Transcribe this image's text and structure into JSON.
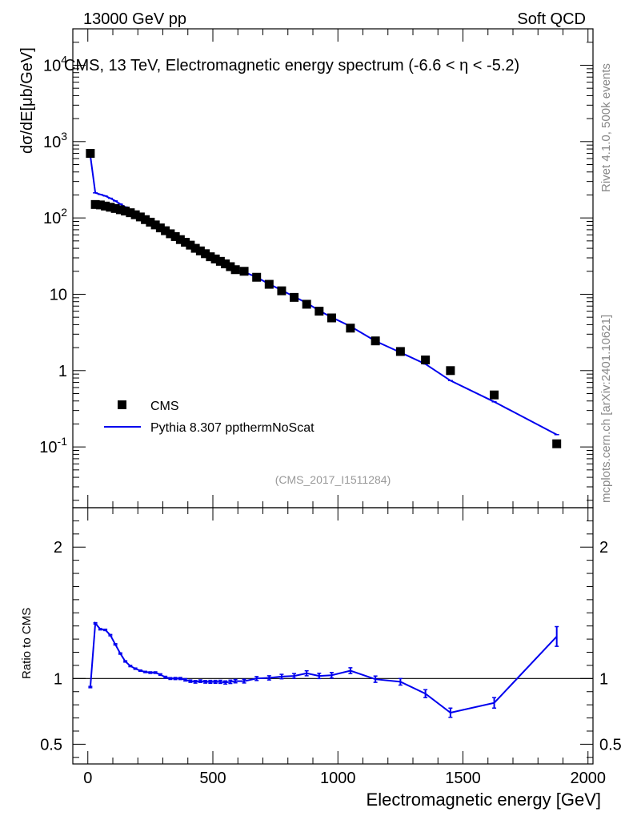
{
  "header": {
    "left": "13000 GeV pp",
    "right": "Soft QCD"
  },
  "side": {
    "rivet": "Rivet 4.1.0,  500k events",
    "mcplots": "mcplots.cern.ch [arXiv:2401.10621]"
  },
  "colors": {
    "mc": "#0000ee",
    "data": "#000000"
  },
  "chart_data": [
    {
      "type": "scatter",
      "title": "CMS, 13 TeV, Electromagnetic energy spectrum (-6.6 < η < -5.2)",
      "ylabel": "dσ/dE[μb/GeV]",
      "xlabel": "",
      "watermark": "(CMS_2017_I1511284)",
      "yscale": "log",
      "xlim": [
        -60,
        2020
      ],
      "ylim": [
        0.016,
        30000
      ],
      "y_ticks": [
        0.1,
        1,
        10,
        100,
        1000,
        10000
      ],
      "y_tick_labels": [
        "10^-1",
        "1",
        "10",
        "10^2",
        "10^3",
        "10^4"
      ],
      "legend_position": "lower-left",
      "series": [
        {
          "name": "CMS",
          "style": "markers",
          "x": [
            10,
            30,
            50,
            70,
            90,
            110,
            130,
            150,
            170,
            190,
            210,
            230,
            250,
            270,
            290,
            310,
            330,
            350,
            370,
            390,
            410,
            430,
            450,
            470,
            490,
            510,
            530,
            550,
            570,
            590,
            625,
            675,
            725,
            775,
            825,
            875,
            925,
            975,
            1050,
            1150,
            1250,
            1350,
            1450,
            1625,
            1875
          ],
          "y": [
            700,
            150,
            148,
            143,
            138,
            133,
            128,
            123,
            117,
            110,
            103,
            95,
            88,
            81,
            74,
            68,
            62,
            57,
            52,
            48,
            44,
            40,
            37,
            34,
            31,
            29,
            27,
            25,
            23,
            21,
            20,
            16.7,
            13.5,
            11.1,
            9.1,
            7.4,
            6.0,
            4.9,
            3.6,
            2.45,
            1.78,
            1.38,
            1.0,
            0.48,
            0.11
          ]
        },
        {
          "name": "Pythia 8.307 ppthermNoScat",
          "style": "line",
          "x": [
            10,
            30,
            50,
            70,
            90,
            110,
            130,
            150,
            170,
            190,
            210,
            230,
            250,
            270,
            290,
            310,
            330,
            350,
            370,
            390,
            410,
            430,
            450,
            470,
            490,
            510,
            530,
            550,
            570,
            590,
            625,
            675,
            725,
            775,
            825,
            875,
            925,
            975,
            1050,
            1150,
            1250,
            1350,
            1450,
            1625,
            1875
          ],
          "y": [
            653,
            213,
            203,
            194,
            181,
            167,
            152,
            139,
            128,
            118,
            109,
            100,
            92,
            85,
            77,
            69,
            62,
            57,
            52,
            47,
            43,
            39,
            36,
            33,
            30.5,
            28.2,
            26.3,
            24.2,
            22.4,
            20.6,
            19.6,
            16.7,
            13.6,
            11.3,
            9.3,
            7.7,
            6.1,
            5.0,
            3.8,
            2.44,
            1.73,
            1.22,
            0.74,
            0.39,
            0.145
          ]
        }
      ],
      "legend": [
        "CMS",
        "Pythia 8.307 ppthermNoScat"
      ]
    },
    {
      "type": "line",
      "title": "",
      "ylabel": "Ratio to CMS",
      "xlabel": "Electromagnetic energy [GeV]",
      "xlim": [
        -60,
        2020
      ],
      "ylim": [
        0.35,
        2.3
      ],
      "x_ticks": [
        0,
        500,
        1000,
        1500,
        2000
      ],
      "x_tick_labels": [
        "0",
        "500",
        "1000",
        "1500",
        "2000"
      ],
      "y_ticks": [
        0.5,
        1,
        2
      ],
      "y_tick_labels": [
        "0.5",
        "1",
        "2"
      ],
      "reference_line": 1,
      "series": [
        {
          "name": "Pythia 8.307 ppthermNoScat / CMS",
          "x": [
            10,
            30,
            50,
            70,
            90,
            110,
            130,
            150,
            170,
            190,
            210,
            230,
            250,
            270,
            290,
            310,
            330,
            350,
            370,
            390,
            410,
            430,
            450,
            470,
            490,
            510,
            530,
            550,
            570,
            590,
            625,
            675,
            725,
            775,
            825,
            875,
            925,
            975,
            1050,
            1150,
            1250,
            1350,
            1450,
            1625,
            1875
          ],
          "y": [
            0.935,
            1.42,
            1.375,
            1.37,
            1.33,
            1.26,
            1.19,
            1.13,
            1.095,
            1.075,
            1.06,
            1.05,
            1.045,
            1.045,
            1.03,
            1.01,
            1.0,
            1.0,
            1.0,
            0.99,
            0.98,
            0.975,
            0.98,
            0.975,
            0.975,
            0.975,
            0.975,
            0.97,
            0.975,
            0.98,
            0.98,
            1.0,
            1.005,
            1.015,
            1.02,
            1.04,
            1.02,
            1.025,
            1.06,
            0.995,
            0.975,
            0.885,
            0.74,
            0.815,
            1.32
          ],
          "err": [
            0.005,
            0.005,
            0.005,
            0.005,
            0.005,
            0.005,
            0.005,
            0.005,
            0.005,
            0.005,
            0.005,
            0.005,
            0.006,
            0.006,
            0.006,
            0.007,
            0.007,
            0.008,
            0.008,
            0.009,
            0.009,
            0.01,
            0.01,
            0.01,
            0.011,
            0.011,
            0.012,
            0.012,
            0.013,
            0.013,
            0.014,
            0.015,
            0.016,
            0.017,
            0.018,
            0.019,
            0.02,
            0.021,
            0.022,
            0.024,
            0.025,
            0.03,
            0.035,
            0.04,
            0.075
          ]
        }
      ]
    }
  ]
}
